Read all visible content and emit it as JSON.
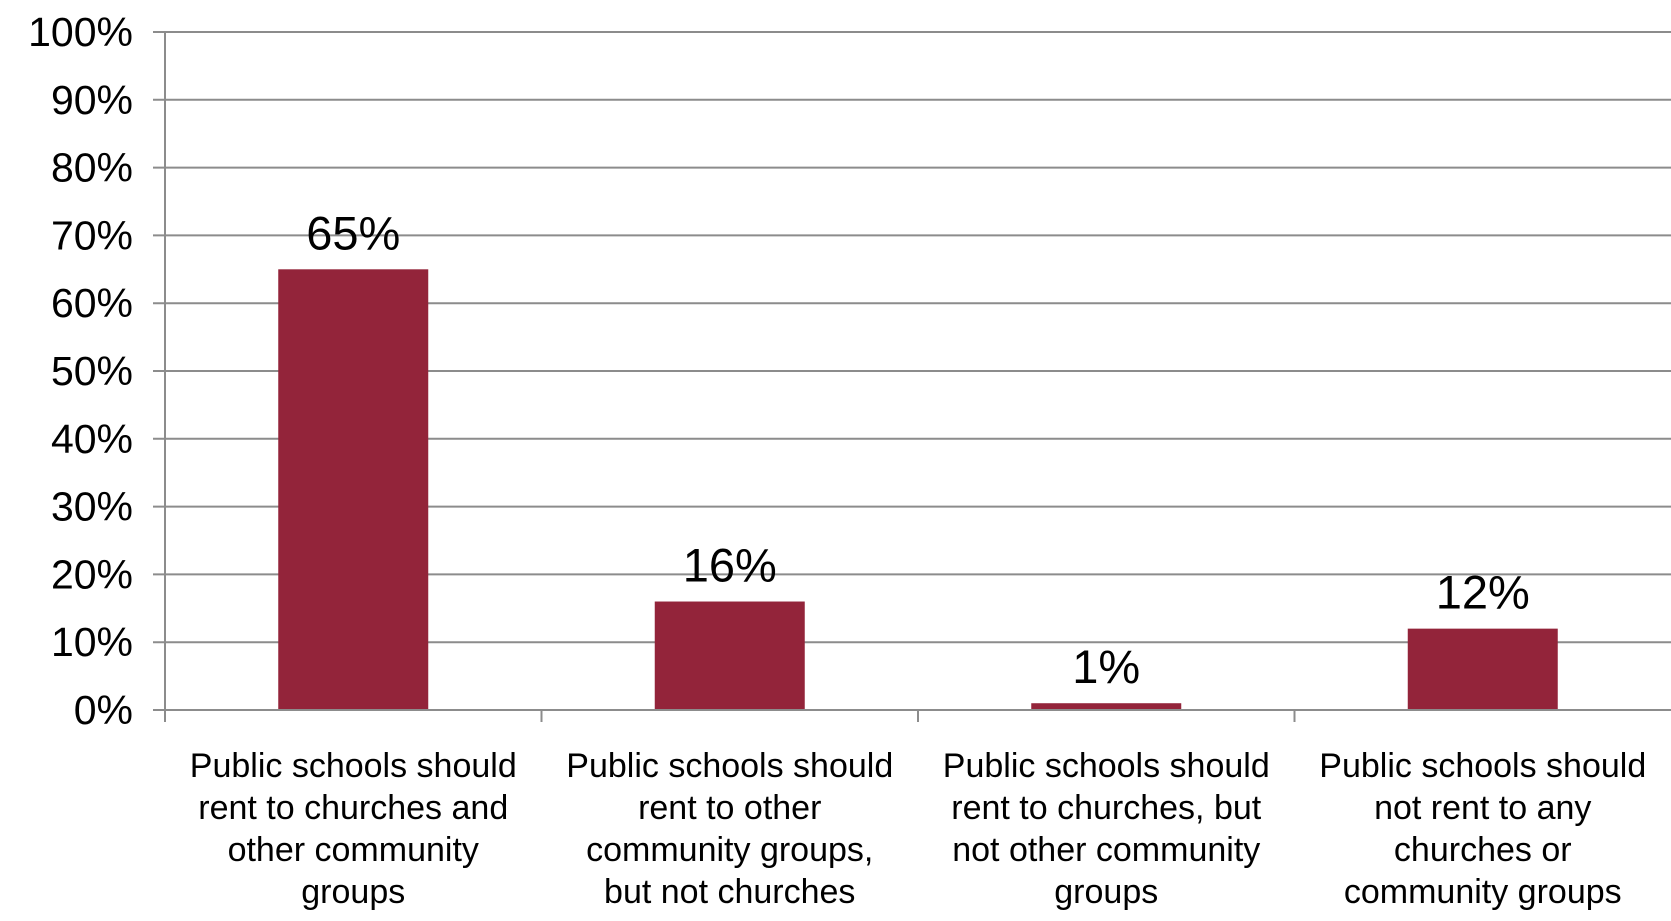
{
  "chart_data": {
    "type": "bar",
    "categories": [
      [
        "Public schools should",
        "rent to churches and",
        "other community",
        "groups"
      ],
      [
        "Public schools should",
        "rent to other",
        "community groups,",
        "but not churches"
      ],
      [
        "Public schools should",
        "rent to churches, but",
        "not other community",
        "groups"
      ],
      [
        "Public schools should",
        "not rent to any",
        "churches or",
        "community groups"
      ]
    ],
    "values": [
      65,
      16,
      1,
      12
    ],
    "data_labels": [
      "65%",
      "16%",
      "1%",
      "12%"
    ],
    "ylim": [
      0,
      100
    ],
    "yticks": [
      0,
      10,
      20,
      30,
      40,
      50,
      60,
      70,
      80,
      90,
      100
    ],
    "ytick_labels": [
      "0%",
      "10%",
      "20%",
      "30%",
      "40%",
      "50%",
      "60%",
      "70%",
      "80%",
      "90%",
      "100%"
    ],
    "grid": true,
    "legend": "none",
    "title": "",
    "xlabel": "",
    "ylabel": "",
    "colors": {
      "bar": "#93243a",
      "grid": "#8c8c8c",
      "axis": "#8c8c8c",
      "text": "#000000"
    }
  }
}
